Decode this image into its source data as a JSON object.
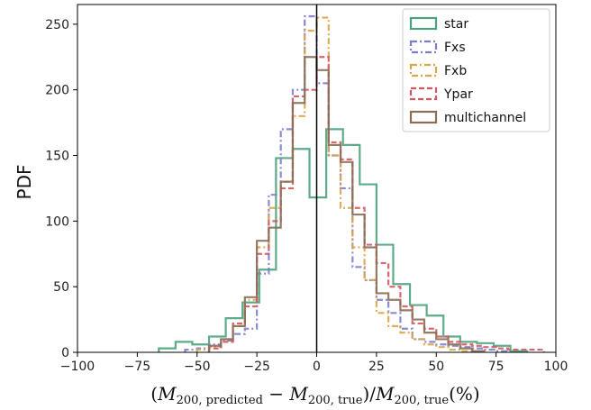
{
  "chart_data": {
    "type": "histogram",
    "xlabel": "(M_{200, predicted} − M_{200, true})/M_{200, true}(%)",
    "xlabel_parts": {
      "open": "(",
      "m1": "M",
      "sub1": "200, predicted",
      "minus": " − ",
      "m2": "M",
      "sub2": "200, true",
      "slash": ")/",
      "m3": "M",
      "sub3": "200, true",
      "unit": "(%)"
    },
    "ylabel": "PDF",
    "xlim": [
      -100,
      100
    ],
    "ylim": [
      0,
      265
    ],
    "xticks": [
      -100,
      -75,
      -50,
      -25,
      0,
      25,
      50,
      75,
      100
    ],
    "xtick_labels": [
      "−100",
      "−75",
      "−50",
      "−25",
      "0",
      "25",
      "50",
      "75",
      "100"
    ],
    "yticks": [
      0,
      50,
      100,
      150,
      200,
      250
    ],
    "ytick_labels": [
      "0",
      "50",
      "100",
      "150",
      "200",
      "250"
    ],
    "grid": false,
    "vertical_line_x": 0,
    "legend_position": "upper-right",
    "series": [
      {
        "name": "star",
        "color": "#4aa37a",
        "dash": "solid",
        "bins": [
          -66,
          -59,
          -52,
          -45,
          -38,
          -31,
          -24,
          -17,
          -10,
          -3,
          4,
          11,
          18,
          25,
          32,
          39,
          46,
          53,
          60,
          67,
          74,
          81,
          88
        ],
        "counts": [
          3,
          8,
          6,
          12,
          26,
          38,
          63,
          148,
          155,
          118,
          170,
          158,
          128,
          82,
          52,
          36,
          28,
          12,
          8,
          7,
          5,
          1
        ]
      },
      {
        "name": "Fxs",
        "color": "#7b7ed0",
        "dash": "dashdot",
        "bins": [
          -55,
          -50,
          -45,
          -40,
          -35,
          -30,
          -25,
          -20,
          -15,
          -10,
          -5,
          0,
          5,
          10,
          15,
          20,
          25,
          30,
          35,
          40,
          45,
          50,
          55,
          60,
          65,
          70,
          75,
          80
        ],
        "counts": [
          2,
          3,
          6,
          9,
          14,
          18,
          60,
          120,
          170,
          200,
          256,
          205,
          150,
          125,
          65,
          55,
          40,
          30,
          18,
          10,
          8,
          6,
          5,
          4,
          3,
          2,
          1
        ]
      },
      {
        "name": "Fxb",
        "color": "#d9a648",
        "dash": "dashdot",
        "bins": [
          -50,
          -45,
          -40,
          -35,
          -30,
          -25,
          -20,
          -15,
          -10,
          -5,
          0,
          5,
          10,
          15,
          20,
          25,
          30,
          35,
          40,
          45,
          50,
          55,
          60,
          65
        ],
        "counts": [
          2,
          4,
          10,
          20,
          40,
          80,
          110,
          130,
          180,
          245,
          255,
          150,
          110,
          80,
          55,
          30,
          20,
          15,
          10,
          6,
          4,
          2,
          1
        ]
      },
      {
        "name": "Ypar",
        "color": "#d45660",
        "dash": "dashed",
        "bins": [
          -45,
          -40,
          -35,
          -30,
          -25,
          -20,
          -15,
          -10,
          -5,
          0,
          5,
          10,
          15,
          20,
          25,
          30,
          35,
          40,
          45,
          50,
          55,
          60,
          65,
          70,
          75,
          80,
          85,
          90,
          95
        ],
        "counts": [
          3,
          8,
          22,
          35,
          75,
          100,
          125,
          195,
          200,
          225,
          160,
          147,
          110,
          82,
          68,
          50,
          35,
          22,
          18,
          12,
          8,
          6,
          5,
          4,
          3,
          2,
          2,
          2
        ]
      },
      {
        "name": "multichannel",
        "color": "#8b6e58",
        "dash": "solid",
        "bins": [
          -45,
          -40,
          -35,
          -30,
          -25,
          -20,
          -15,
          -10,
          -5,
          0,
          5,
          10,
          15,
          20,
          25,
          30,
          35,
          40,
          45,
          50,
          55,
          60,
          65,
          70
        ],
        "counts": [
          5,
          10,
          20,
          42,
          85,
          95,
          130,
          190,
          225,
          215,
          158,
          145,
          105,
          80,
          45,
          40,
          32,
          25,
          15,
          10,
          6,
          3,
          1
        ]
      }
    ]
  }
}
